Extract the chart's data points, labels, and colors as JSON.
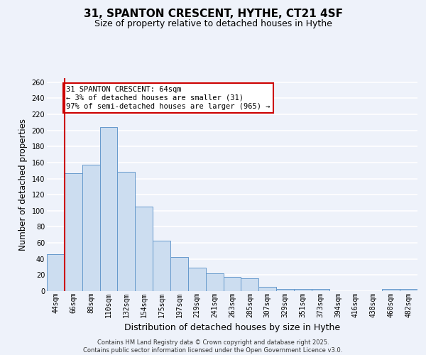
{
  "title": "31, SPANTON CRESCENT, HYTHE, CT21 4SF",
  "subtitle": "Size of property relative to detached houses in Hythe",
  "xlabel": "Distribution of detached houses by size in Hythe",
  "ylabel": "Number of detached properties",
  "bar_labels": [
    "44sqm",
    "66sqm",
    "88sqm",
    "110sqm",
    "132sqm",
    "154sqm",
    "175sqm",
    "197sqm",
    "219sqm",
    "241sqm",
    "263sqm",
    "285sqm",
    "307sqm",
    "329sqm",
    "351sqm",
    "373sqm",
    "394sqm",
    "416sqm",
    "438sqm",
    "460sqm",
    "482sqm"
  ],
  "bar_values": [
    46,
    147,
    157,
    204,
    148,
    105,
    63,
    42,
    29,
    22,
    18,
    16,
    5,
    3,
    3,
    3,
    0,
    0,
    0,
    3,
    3
  ],
  "bar_color": "#ccddf0",
  "bar_edge_color": "#6699cc",
  "ylim": [
    0,
    265
  ],
  "yticks": [
    0,
    20,
    40,
    60,
    80,
    100,
    120,
    140,
    160,
    180,
    200,
    220,
    240,
    260
  ],
  "vline_x_bar_idx": 1,
  "vline_color": "#cc0000",
  "annotation_title": "31 SPANTON CRESCENT: 64sqm",
  "annotation_line1": "← 3% of detached houses are smaller (31)",
  "annotation_line2": "97% of semi-detached houses are larger (965) →",
  "annotation_box_color": "#cc0000",
  "footer1": "Contains HM Land Registry data © Crown copyright and database right 2025.",
  "footer2": "Contains public sector information licensed under the Open Government Licence v3.0.",
  "background_color": "#eef2fa",
  "grid_color": "#ffffff",
  "title_fontsize": 11,
  "subtitle_fontsize": 9,
  "ylabel_fontsize": 8.5,
  "xlabel_fontsize": 9,
  "tick_fontsize": 7,
  "footer_fontsize": 6,
  "annotation_fontsize": 7.5
}
